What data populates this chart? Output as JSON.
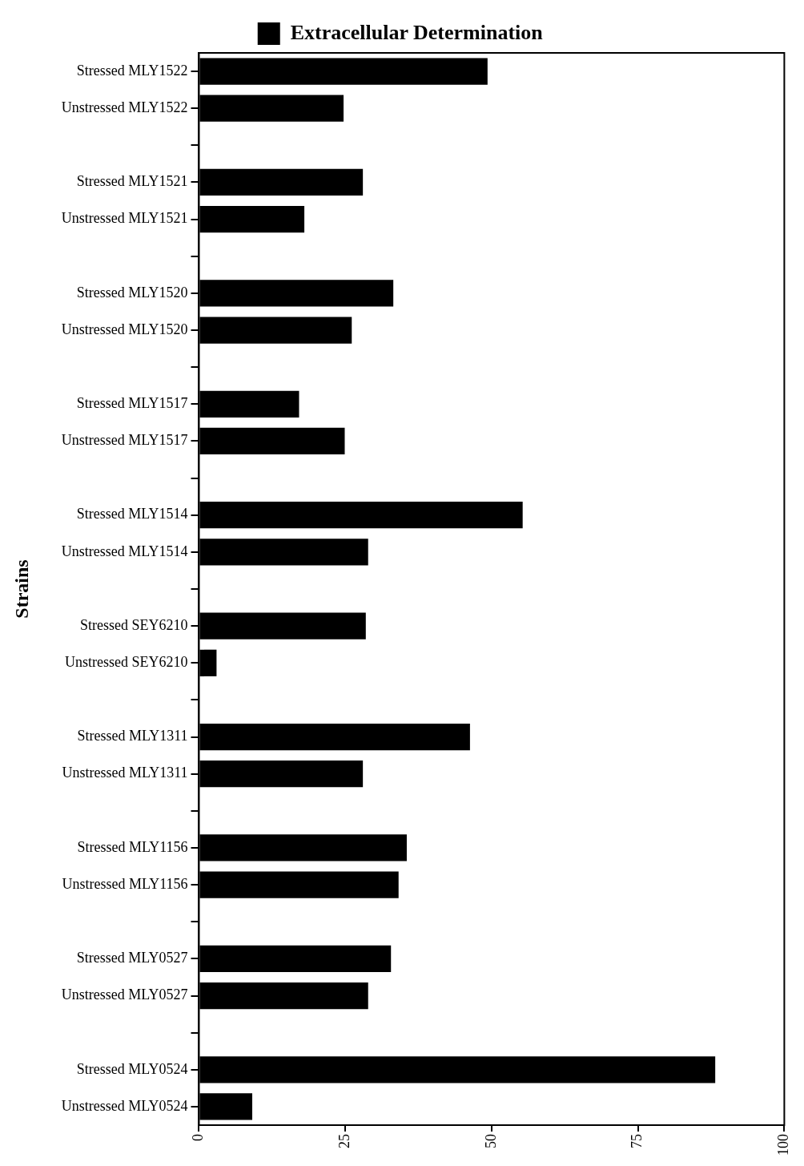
{
  "chart_data": {
    "type": "bar",
    "orientation": "horizontal",
    "ylabel": "Strains",
    "legend": "top",
    "categories": [
      "Stressed MLY1522",
      "Unstressed MLY1522",
      null,
      "Stressed MLY1521",
      "Unstressed MLY1521",
      null,
      "Stressed MLY1520",
      "Unstressed MLY1520",
      null,
      "Stressed MLY1517",
      "Unstressed MLY1517",
      null,
      "Stressed MLY1514",
      "Unstressed MLY1514",
      null,
      "Stressed SEY6210",
      "Unstressed SEY6210",
      null,
      "Stressed MLY1311",
      "Unstressed MLY1311",
      null,
      "Stressed MLY1156",
      "Unstressed MLY1156",
      null,
      "Stressed MLY0527",
      "Unstressed MLY0527",
      null,
      "Stressed MLY0524",
      "Unstressed MLY0524"
    ],
    "series": [
      {
        "name": "Extracellular Determination",
        "color": "#000000",
        "values": [
          49.3,
          24.7,
          null,
          28,
          18,
          null,
          33.2,
          26.1,
          null,
          17.1,
          24.9,
          null,
          55.3,
          28.9,
          null,
          28.5,
          3,
          null,
          46.3,
          28,
          null,
          35.5,
          34.1,
          null,
          32.8,
          28.9,
          null,
          88.2,
          9.1
        ]
      }
    ],
    "xlim": [
      0,
      100
    ],
    "xticks": [
      0,
      25,
      50,
      75,
      100
    ],
    "grid": false
  }
}
